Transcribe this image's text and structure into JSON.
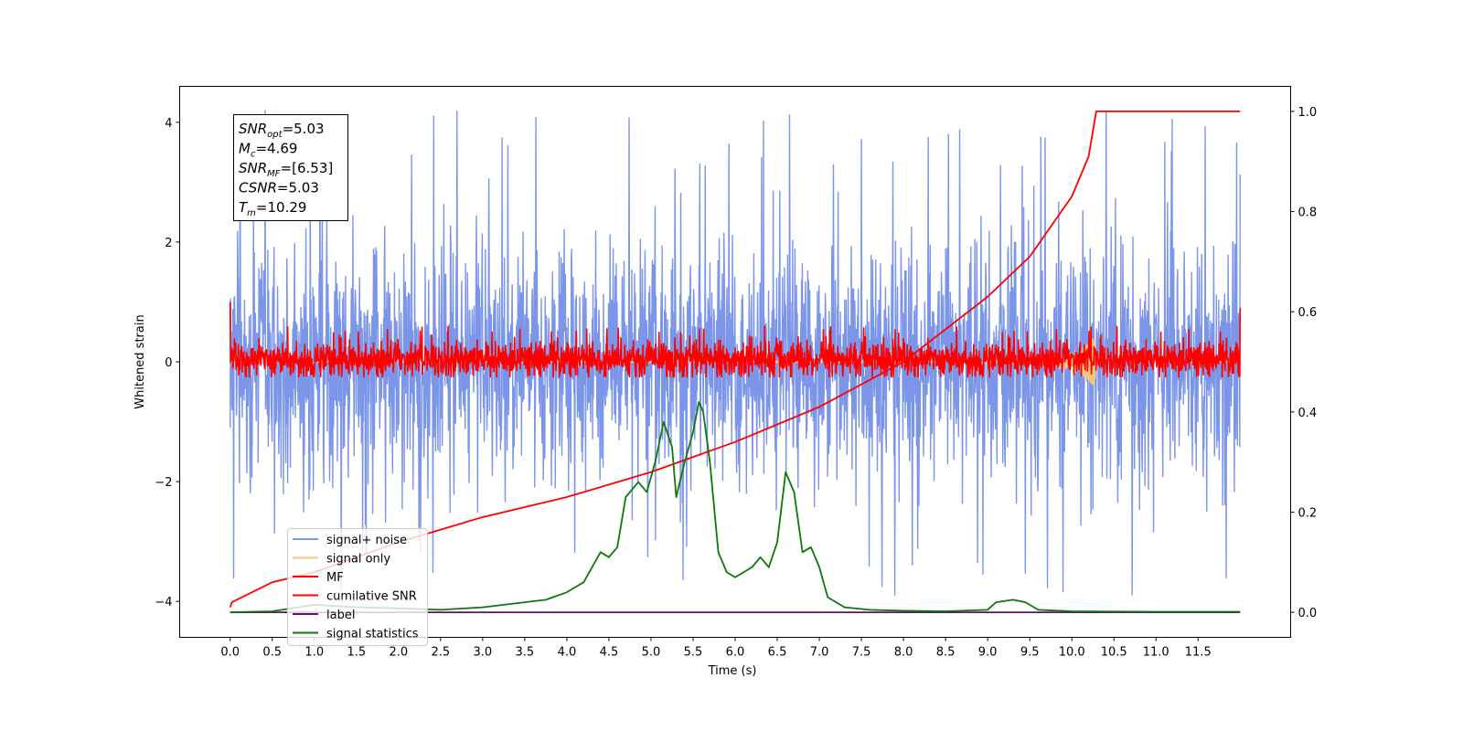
{
  "chart_data": {
    "type": "line",
    "xlabel": "Time (s)",
    "ylabel_left": "Whitened strain",
    "xlim": [
      -0.6,
      12.6
    ],
    "ylim_left": [
      -4.6,
      4.6
    ],
    "ylim_right": [
      -0.05,
      1.05
    ],
    "x_ticks": [
      0.0,
      0.5,
      1.0,
      1.5,
      2.0,
      2.5,
      3.0,
      3.5,
      4.0,
      4.5,
      5.0,
      5.5,
      6.0,
      6.5,
      7.0,
      7.5,
      8.0,
      8.5,
      9.0,
      9.5,
      10.0,
      10.5,
      11.0,
      11.5
    ],
    "x_tick_labels": [
      "0.0",
      "0.5",
      "1.0",
      "1.5",
      "2.0",
      "2.5",
      "3.0",
      "3.5",
      "4.0",
      "4.5",
      "5.0",
      "5.5",
      "6.0",
      "6.5",
      "7.0",
      "7.5",
      "8.0",
      "8.5",
      "9.0",
      "9.5",
      "10.0",
      "10.5",
      "11.0",
      "11.5"
    ],
    "y_left_ticks": [
      4,
      2,
      0,
      -2,
      -4
    ],
    "y_left_tick_labels": [
      "4",
      "2",
      "0",
      "−2",
      "−4"
    ],
    "y_right_ticks": [
      1.0,
      0.8,
      0.6,
      0.4,
      0.2,
      0.0
    ],
    "y_right_tick_labels": [
      "1.0",
      "0.8",
      "0.6",
      "0.4",
      "0.2",
      "0.0"
    ],
    "grid": false,
    "legend_position": "lower-left",
    "info_box": {
      "lines": [
        {
          "base": "SNR",
          "sub": "opt",
          "value": "=5.03"
        },
        {
          "base": "M",
          "sub": "c",
          "value": "=4.69"
        },
        {
          "base": "SNR",
          "sub": "MF",
          "value": "=[6.53]"
        },
        {
          "base": "CSNR",
          "sub": "",
          "value": "=5.03"
        },
        {
          "base": "T",
          "sub": "m",
          "value": "=10.29"
        }
      ]
    },
    "series": [
      {
        "name": "signal+ noise",
        "axis": "left",
        "color": "#7b95e8",
        "kind": "noise_band",
        "x_range": [
          0,
          12.0
        ],
        "typical_range": [
          -1.7,
          1.6
        ],
        "extreme_range": [
          -3.9,
          4.2
        ]
      },
      {
        "name": "signal only",
        "axis": "left",
        "color": "#f5c77e",
        "kind": "chirp",
        "x": [
          0,
          9.0,
          9.5,
          10.0,
          10.2,
          10.29,
          10.3,
          12.0
        ],
        "amplitude": [
          0.0,
          0.02,
          0.05,
          0.15,
          0.3,
          0.5,
          0.0,
          0.0
        ]
      },
      {
        "name": "MF",
        "axis": "left",
        "color": "#ff0000",
        "kind": "noise_band",
        "x_range": [
          0,
          12.0
        ],
        "typical_range": [
          -0.2,
          0.3
        ],
        "extreme_range": [
          -0.25,
          0.6
        ],
        "edge_values": [
          1.0,
          0.9
        ]
      },
      {
        "name": "cumilative SNR",
        "axis": "right",
        "color": "#ff0000",
        "x": [
          0,
          0.02,
          0.5,
          1.0,
          2.0,
          3.0,
          4.0,
          5.0,
          6.0,
          7.0,
          8.0,
          9.0,
          9.5,
          10.0,
          10.2,
          10.29,
          12.0
        ],
        "values": [
          0.01,
          0.02,
          0.06,
          0.08,
          0.14,
          0.19,
          0.23,
          0.28,
          0.34,
          0.41,
          0.5,
          0.63,
          0.71,
          0.83,
          0.91,
          1.0,
          1.0
        ]
      },
      {
        "name": "label",
        "axis": "right",
        "color": "#6a0f6a",
        "x": [
          0,
          12.0
        ],
        "values": [
          0.0,
          0.0
        ]
      },
      {
        "name": "signal statistics",
        "axis": "right",
        "color": "#0a7a0a",
        "x": [
          0,
          0.5,
          1.0,
          1.5,
          2.0,
          2.5,
          3.0,
          3.25,
          3.5,
          3.75,
          4.0,
          4.2,
          4.4,
          4.5,
          4.6,
          4.7,
          4.85,
          4.95,
          5.05,
          5.15,
          5.25,
          5.3,
          5.4,
          5.5,
          5.57,
          5.62,
          5.7,
          5.8,
          5.9,
          6.0,
          6.1,
          6.2,
          6.3,
          6.4,
          6.5,
          6.6,
          6.7,
          6.8,
          6.9,
          7.0,
          7.1,
          7.3,
          7.6,
          8.0,
          8.5,
          9.0,
          9.1,
          9.3,
          9.45,
          9.6,
          10.0,
          11.0,
          12.0
        ],
        "values": [
          0.0,
          0.002,
          0.015,
          0.01,
          0.008,
          0.005,
          0.01,
          0.015,
          0.02,
          0.025,
          0.04,
          0.06,
          0.12,
          0.11,
          0.13,
          0.23,
          0.26,
          0.24,
          0.3,
          0.38,
          0.33,
          0.23,
          0.3,
          0.36,
          0.42,
          0.4,
          0.3,
          0.12,
          0.08,
          0.07,
          0.08,
          0.09,
          0.11,
          0.09,
          0.14,
          0.28,
          0.24,
          0.12,
          0.13,
          0.09,
          0.03,
          0.01,
          0.005,
          0.003,
          0.002,
          0.005,
          0.02,
          0.025,
          0.02,
          0.005,
          0.002,
          0.001,
          0.001
        ]
      }
    ]
  }
}
